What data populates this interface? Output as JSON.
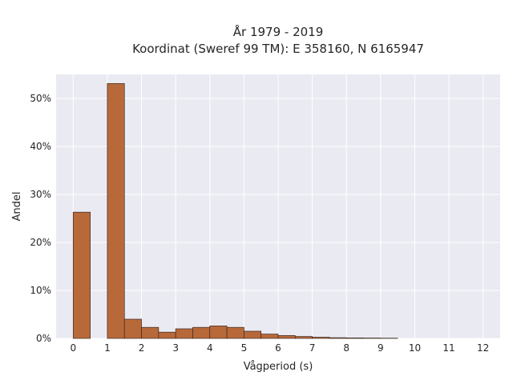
{
  "chart_data": {
    "type": "bar",
    "title_lines": [
      "År 1979 - 2019",
      "Koordinat (Sweref 99 TM): E 358160, N 6165947"
    ],
    "xlabel": "Vågperiod (s)",
    "ylabel": "Andel",
    "xlim": [
      -0.5,
      12.5
    ],
    "ylim": [
      0,
      55
    ],
    "x_ticks": [
      0,
      1,
      2,
      3,
      4,
      5,
      6,
      7,
      8,
      9,
      10,
      11,
      12
    ],
    "x_tick_labels": [
      "0",
      "1",
      "2",
      "3",
      "4",
      "5",
      "6",
      "7",
      "8",
      "9",
      "10",
      "11",
      "12"
    ],
    "y_ticks": [
      0,
      10,
      20,
      30,
      40,
      50
    ],
    "y_tick_labels": [
      "0%",
      "10%",
      "20%",
      "30%",
      "40%",
      "50%"
    ],
    "bin_width": 0.5,
    "bins": [
      {
        "start": 0.0,
        "value": 26.3
      },
      {
        "start": 1.0,
        "value": 53.1
      },
      {
        "start": 1.5,
        "value": 4.0
      },
      {
        "start": 2.0,
        "value": 2.3
      },
      {
        "start": 2.5,
        "value": 1.3
      },
      {
        "start": 3.0,
        "value": 2.0
      },
      {
        "start": 3.5,
        "value": 2.3
      },
      {
        "start": 4.0,
        "value": 2.6
      },
      {
        "start": 4.5,
        "value": 2.3
      },
      {
        "start": 5.0,
        "value": 1.5
      },
      {
        "start": 5.5,
        "value": 0.9
      },
      {
        "start": 6.0,
        "value": 0.6
      },
      {
        "start": 6.5,
        "value": 0.4
      },
      {
        "start": 7.0,
        "value": 0.25
      },
      {
        "start": 7.5,
        "value": 0.15
      },
      {
        "start": 8.0,
        "value": 0.1
      },
      {
        "start": 8.5,
        "value": 0.08
      },
      {
        "start": 9.0,
        "value": 0.05
      }
    ],
    "bar_color": "#b8693a",
    "background_color": "#eaeaf2",
    "grid": true
  }
}
